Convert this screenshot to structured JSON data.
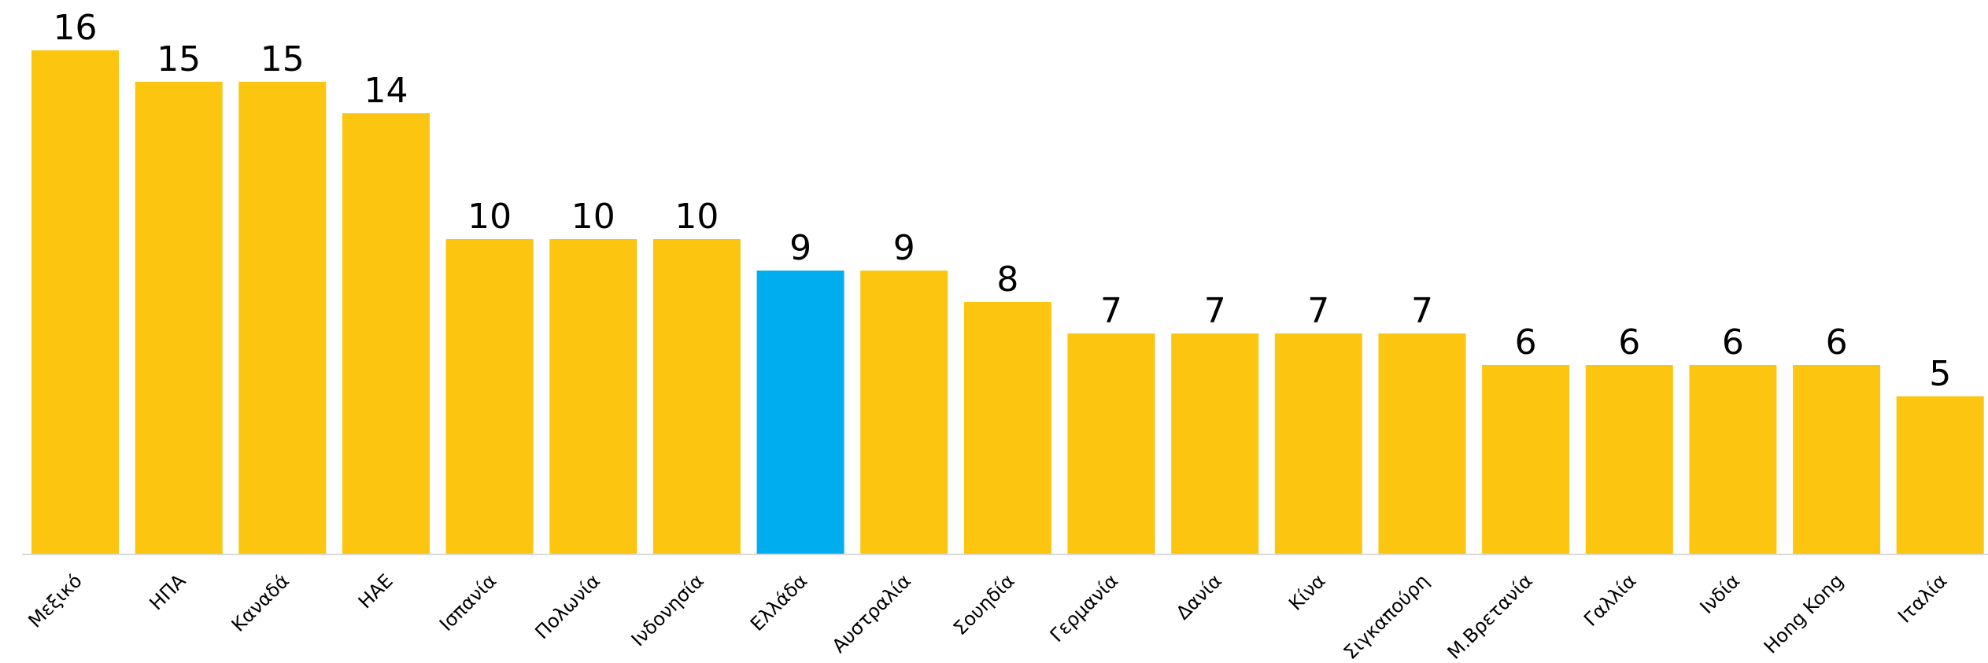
{
  "chart_data": {
    "type": "bar",
    "title": "",
    "xlabel": "",
    "ylabel": "",
    "ylim": [
      0,
      16
    ],
    "grid": false,
    "legend": "none",
    "bar_color": "#FCC510",
    "highlight_color": "#00AEEF",
    "highlight_category": "Ελλάδα",
    "categories": [
      "Μεξικό",
      "ΗΠΑ",
      "Καναδά",
      "ΗΑΕ",
      "Ισπανία",
      "Πολωνία",
      "Ινδονησία",
      "Ελλάδα",
      "Αυστραλία",
      "Σουηδία",
      "Γερμανία",
      "Δανία",
      "Κίνα",
      "Σιγκαπούρη",
      "Μ.Βρετανία",
      "Γαλλία",
      "Ινδία",
      "Hong Kong",
      "Ιταλία"
    ],
    "values": [
      16,
      15,
      15,
      14,
      10,
      10,
      10,
      9,
      9,
      8,
      7,
      7,
      7,
      7,
      6,
      6,
      6,
      6,
      5
    ]
  }
}
